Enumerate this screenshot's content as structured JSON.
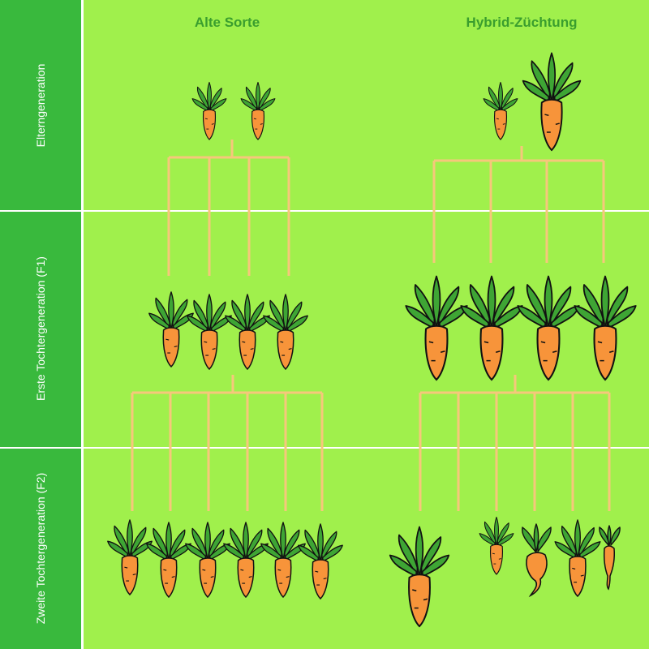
{
  "columns": {
    "old": {
      "title": "Alte Sorte"
    },
    "hybrid": {
      "title": "Hybrid-Züchtung"
    }
  },
  "rows": {
    "parents": {
      "label": "Elterngeneration"
    },
    "f1": {
      "label": "Erste Tochtergeneration (F1)"
    },
    "f2": {
      "label": "Zweite Tochtergeneration (F2)"
    }
  },
  "colors": {
    "background": "#a0f04c",
    "sidebar": "#39b93d",
    "title": "#3a9e2e",
    "connector": "#f6c77b",
    "carrot": "#f7943a",
    "leaves": "#3ea534",
    "outline": "#111111"
  },
  "icons": {
    "plant": "carrot-icon"
  }
}
